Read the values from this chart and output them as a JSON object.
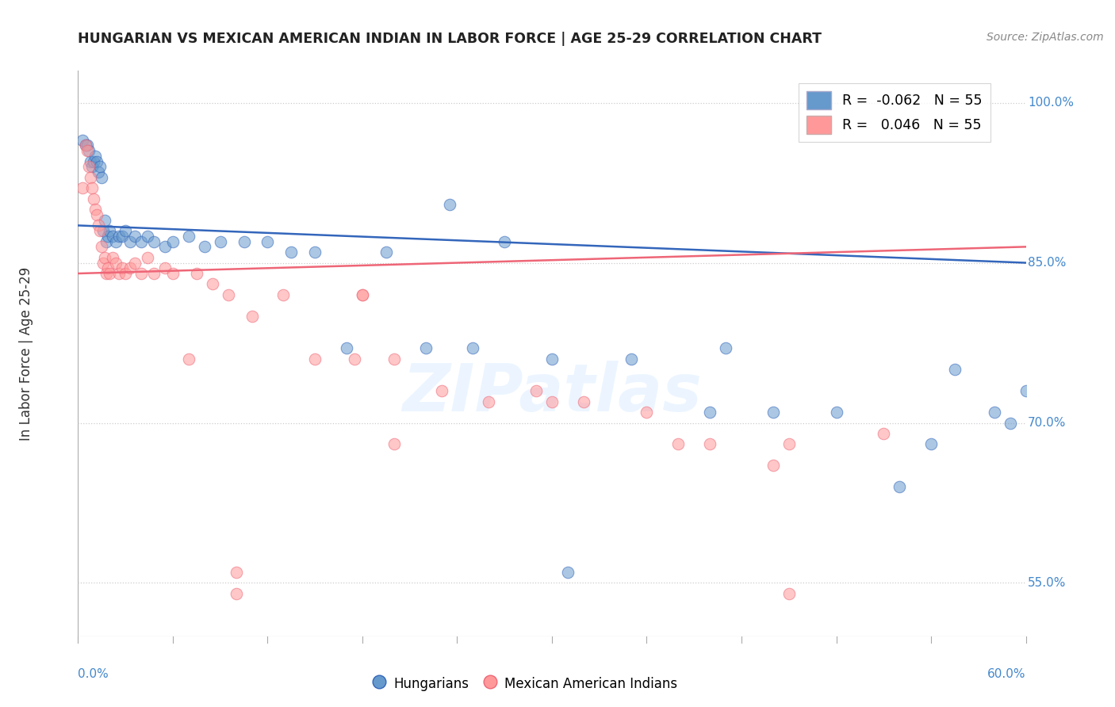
{
  "title": "HUNGARIAN VS MEXICAN AMERICAN INDIAN IN LABOR FORCE | AGE 25-29 CORRELATION CHART",
  "source": "Source: ZipAtlas.com",
  "xlabel_bottom_left": "0.0%",
  "xlabel_bottom_right": "60.0%",
  "ylabel": "In Labor Force | Age 25-29",
  "right_ytick_labels": [
    "100.0%",
    "85.0%",
    "70.0%",
    "55.0%"
  ],
  "right_ytick_values": [
    1.0,
    0.85,
    0.7,
    0.55
  ],
  "xmin": 0.0,
  "xmax": 0.6,
  "ymin": 0.5,
  "ymax": 1.03,
  "legend_blue_r": "-0.062",
  "legend_blue_n": "55",
  "legend_pink_r": "0.046",
  "legend_pink_n": "55",
  "blue_color": "#6699CC",
  "pink_color": "#FF9999",
  "blue_line_color": "#3366BB",
  "pink_line_color": "#EE6677",
  "watermark": "ZIPatlas",
  "blue_line_y0": 0.885,
  "blue_line_y1": 0.85,
  "pink_line_y0": 0.84,
  "pink_line_y1": 0.865,
  "blue_dots_x": [
    0.003,
    0.005,
    0.006,
    0.007,
    0.008,
    0.009,
    0.01,
    0.011,
    0.012,
    0.013,
    0.014,
    0.015,
    0.016,
    0.017,
    0.018,
    0.019,
    0.02,
    0.022,
    0.024,
    0.026,
    0.028,
    0.03,
    0.033,
    0.036,
    0.04,
    0.044,
    0.048,
    0.055,
    0.06,
    0.07,
    0.08,
    0.09,
    0.105,
    0.12,
    0.135,
    0.15,
    0.17,
    0.195,
    0.22,
    0.25,
    0.27,
    0.3,
    0.35,
    0.4,
    0.44,
    0.48,
    0.52,
    0.555,
    0.58,
    0.59,
    0.235,
    0.31,
    0.41,
    0.54,
    0.6
  ],
  "blue_dots_y": [
    0.965,
    0.96,
    0.96,
    0.955,
    0.945,
    0.94,
    0.945,
    0.95,
    0.945,
    0.935,
    0.94,
    0.93,
    0.88,
    0.89,
    0.87,
    0.875,
    0.88,
    0.875,
    0.87,
    0.875,
    0.875,
    0.88,
    0.87,
    0.875,
    0.87,
    0.875,
    0.87,
    0.865,
    0.87,
    0.875,
    0.865,
    0.87,
    0.87,
    0.87,
    0.86,
    0.86,
    0.77,
    0.86,
    0.77,
    0.77,
    0.87,
    0.76,
    0.76,
    0.71,
    0.71,
    0.71,
    0.64,
    0.75,
    0.71,
    0.7,
    0.905,
    0.56,
    0.77,
    0.68,
    0.73
  ],
  "pink_dots_x": [
    0.003,
    0.005,
    0.006,
    0.007,
    0.008,
    0.009,
    0.01,
    0.011,
    0.012,
    0.013,
    0.014,
    0.015,
    0.016,
    0.017,
    0.018,
    0.019,
    0.02,
    0.022,
    0.024,
    0.026,
    0.028,
    0.03,
    0.033,
    0.036,
    0.04,
    0.044,
    0.048,
    0.055,
    0.06,
    0.07,
    0.075,
    0.085,
    0.095,
    0.11,
    0.13,
    0.15,
    0.175,
    0.2,
    0.23,
    0.26,
    0.29,
    0.32,
    0.36,
    0.4,
    0.45,
    0.51,
    0.18,
    0.3,
    0.38,
    0.44,
    0.1,
    0.2,
    0.1,
    0.18,
    0.45
  ],
  "pink_dots_y": [
    0.92,
    0.96,
    0.955,
    0.94,
    0.93,
    0.92,
    0.91,
    0.9,
    0.895,
    0.885,
    0.88,
    0.865,
    0.85,
    0.855,
    0.84,
    0.845,
    0.84,
    0.855,
    0.85,
    0.84,
    0.845,
    0.84,
    0.845,
    0.85,
    0.84,
    0.855,
    0.84,
    0.845,
    0.84,
    0.76,
    0.84,
    0.83,
    0.82,
    0.8,
    0.82,
    0.76,
    0.76,
    0.76,
    0.73,
    0.72,
    0.73,
    0.72,
    0.71,
    0.68,
    0.68,
    0.69,
    0.82,
    0.72,
    0.68,
    0.66,
    0.54,
    0.68,
    0.56,
    0.82,
    0.54
  ]
}
